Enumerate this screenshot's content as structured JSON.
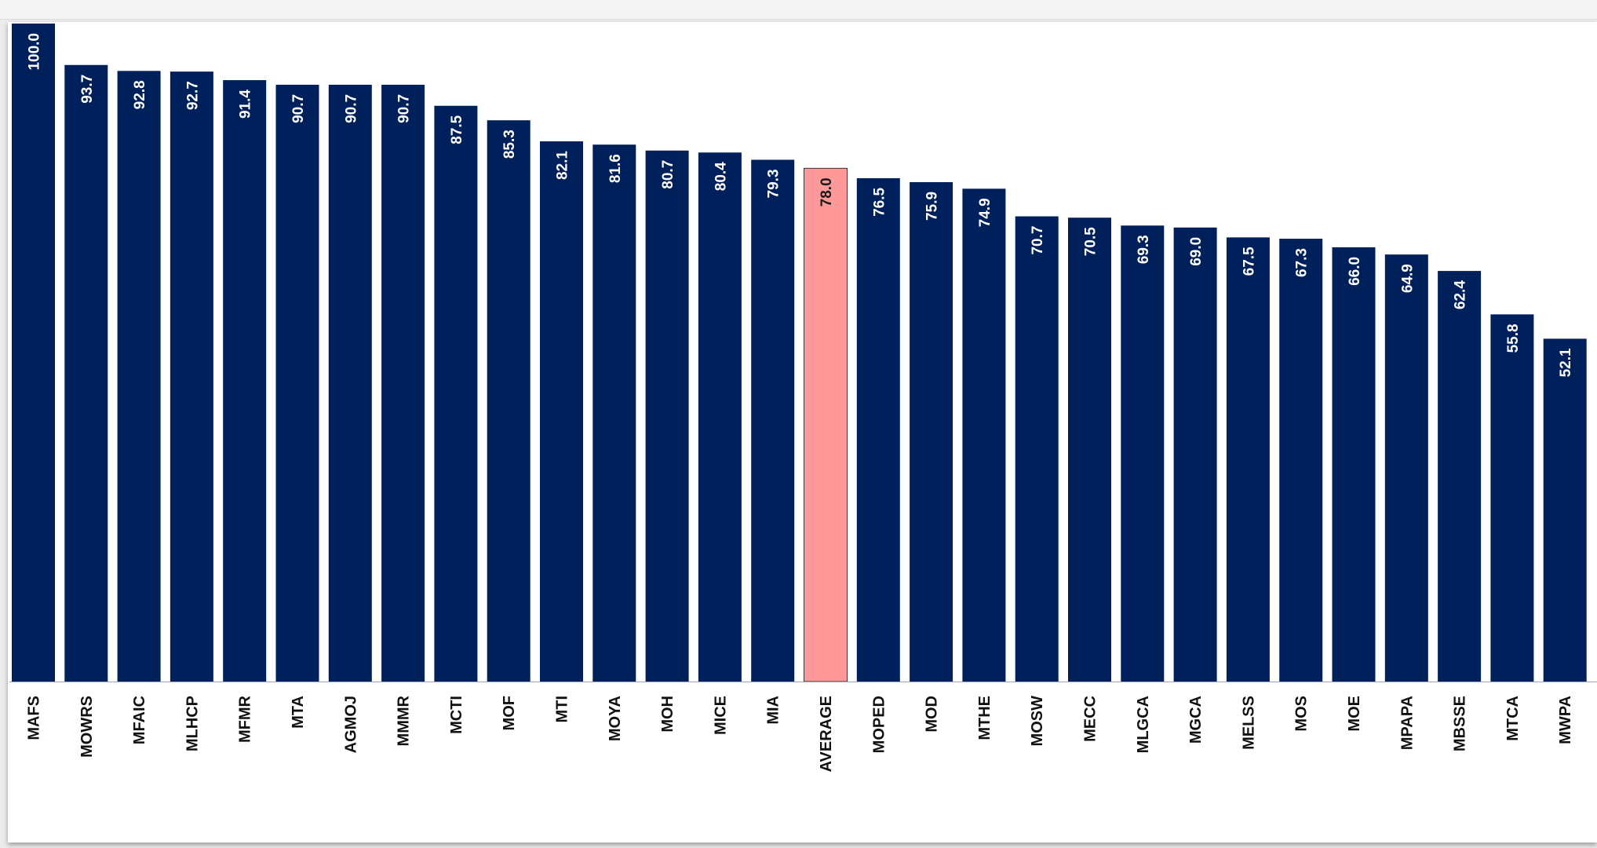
{
  "chart_data": {
    "type": "bar",
    "title": "",
    "xlabel": "",
    "ylabel": "",
    "ylim": [
      0,
      100
    ],
    "grid": false,
    "orientation": "vertical",
    "categories": [
      "MAFS",
      "MOWRS",
      "MFAIC",
      "MLHCP",
      "MFMR",
      "MTA",
      "AGMOJ",
      "MMMR",
      "MCTI",
      "MOF",
      "MTI",
      "MOYA",
      "MOH",
      "MICE",
      "MIA",
      "AVERAGE",
      "MOPED",
      "MOD",
      "MTHE",
      "MOSW",
      "MECC",
      "MLGCA",
      "MGCA",
      "MELSS",
      "MOS",
      "MOE",
      "MPAPA",
      "MBSSE",
      "MTCA",
      "MWPA"
    ],
    "values": [
      100.0,
      93.7,
      92.8,
      92.7,
      91.4,
      90.7,
      90.7,
      90.7,
      87.5,
      85.3,
      82.1,
      81.6,
      80.7,
      80.4,
      79.3,
      78.0,
      76.5,
      75.9,
      74.9,
      70.7,
      70.5,
      69.3,
      69.0,
      67.5,
      67.3,
      66.0,
      64.9,
      62.4,
      55.8,
      52.1
    ],
    "labels": [
      "100.0",
      "93.7",
      "92.8",
      "92.7",
      "91.4",
      "90.7",
      "90.7",
      "90.7",
      "87.5",
      "85.3",
      "82.1",
      "81.6",
      "80.7",
      "80.4",
      "79.3",
      "78.0",
      "76.5",
      "75.9",
      "74.9",
      "70.7",
      "70.5",
      "69.3",
      "69.0",
      "67.5",
      "67.3",
      "66.0",
      "64.9",
      "62.4",
      "55.8",
      "52.1"
    ],
    "highlight_category": "AVERAGE",
    "colors": {
      "bar": "#00205b",
      "highlight": "#ff9999",
      "label_on_bar": "#ffffff",
      "label_on_highlight": "#1a1a1a",
      "axis_label": "#111111"
    }
  }
}
